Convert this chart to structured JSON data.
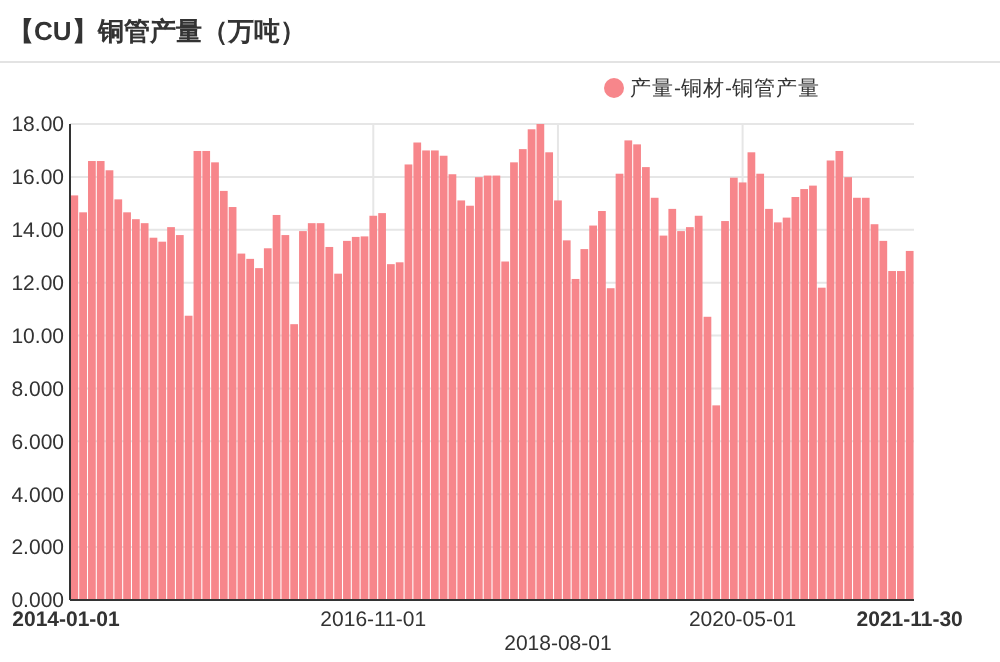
{
  "chart_data": {
    "type": "bar",
    "title": "【CU】铜管产量（万吨）",
    "categories": [
      "2014-01-01",
      null,
      null,
      null,
      null,
      null,
      null,
      null,
      null,
      null,
      null,
      null,
      null,
      null,
      null,
      null,
      null,
      null,
      null,
      null,
      null,
      null,
      null,
      null,
      null,
      null,
      null,
      null,
      null,
      null,
      null,
      null,
      null,
      null,
      "2016-11-01",
      null,
      null,
      null,
      null,
      null,
      null,
      null,
      null,
      null,
      null,
      null,
      null,
      null,
      null,
      null,
      null,
      null,
      null,
      null,
      null,
      "2018-08-01",
      null,
      null,
      null,
      null,
      null,
      null,
      null,
      null,
      null,
      null,
      null,
      null,
      null,
      null,
      null,
      null,
      null,
      null,
      null,
      null,
      "2020-05-01",
      null,
      null,
      null,
      null,
      null,
      null,
      null,
      null,
      null,
      null,
      null,
      null,
      null,
      null,
      null,
      null,
      null,
      null,
      "2021-11-30"
    ],
    "series": [
      {
        "name": "产量-铜材-铜管产量",
        "color": "#f7868b",
        "values": [
          15.3,
          14.66,
          16.6,
          16.6,
          16.25,
          15.15,
          14.66,
          14.4,
          14.25,
          13.7,
          13.55,
          14.1,
          13.8,
          10.75,
          16.98,
          16.98,
          16.55,
          15.47,
          14.86,
          13.1,
          12.9,
          12.55,
          13.3,
          14.56,
          13.8,
          10.43,
          13.95,
          14.25,
          14.25,
          13.35,
          12.34,
          13.58,
          13.73,
          13.75,
          14.53,
          14.63,
          12.7,
          12.77,
          16.47,
          17.3,
          17.0,
          17.0,
          16.8,
          16.1,
          15.11,
          14.91,
          15.99,
          16.05,
          16.05,
          12.8,
          16.55,
          17.05,
          17.8,
          18.0,
          16.93,
          15.11,
          13.6,
          12.14,
          13.27,
          14.16,
          14.71,
          11.79,
          16.12,
          17.38,
          17.23,
          16.37,
          15.21,
          13.78,
          14.79,
          13.95,
          14.1,
          14.53,
          10.71,
          7.36,
          14.33,
          15.97,
          15.79,
          16.93,
          16.12,
          14.79,
          14.28,
          14.46,
          15.24,
          15.54,
          15.67,
          11.81,
          16.62,
          16.98,
          15.99,
          15.21,
          15.21,
          14.21,
          13.58,
          12.44,
          12.44,
          13.2
        ]
      }
    ],
    "ylim": [
      0,
      18
    ],
    "yticks": [
      {
        "value": 0,
        "label": "0.000"
      },
      {
        "value": 2,
        "label": "2.000"
      },
      {
        "value": 4,
        "label": "4.000"
      },
      {
        "value": 6,
        "label": "6.000"
      },
      {
        "value": 8,
        "label": "8.000"
      },
      {
        "value": 10,
        "label": "10.00"
      },
      {
        "value": 12,
        "label": "12.00"
      },
      {
        "value": 14,
        "label": "14.00"
      },
      {
        "value": 16,
        "label": "16.00"
      },
      {
        "value": 18,
        "label": "18.00"
      }
    ],
    "grid": true,
    "legend": "top right"
  }
}
